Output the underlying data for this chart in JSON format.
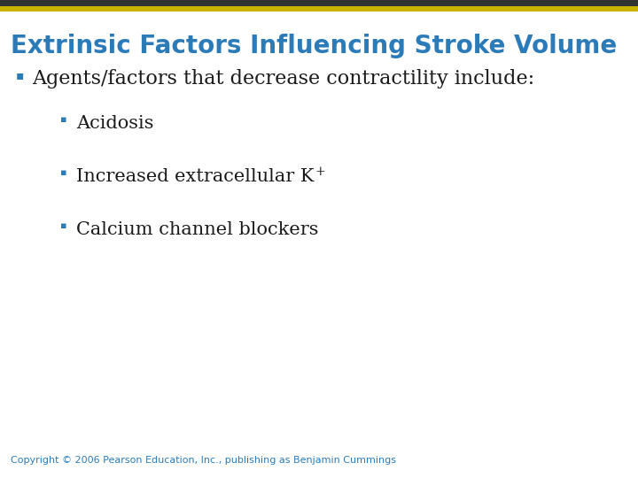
{
  "title": "Extrinsic Factors Influencing Stroke Volume",
  "title_color": "#2b7bb9",
  "title_fontsize": 20,
  "title_bold": true,
  "top_bar_dark_color": "#333333",
  "top_bar_gold_color": "#c8b400",
  "background_color": "#ffffff",
  "bullet1_text": "Agents/factors that decrease contractility include:",
  "bullet1_color": "#1a1a1a",
  "bullet1_fontsize": 16,
  "bullet1_bullet_color": "#2b7bb9",
  "sub_bullets": [
    "Acidosis",
    "Increased extracellular K",
    "Calcium channel blockers"
  ],
  "sub_bullet_superscripts": [
    null,
    "+",
    null
  ],
  "sub_bullet_color": "#1a1a1a",
  "sub_bullet_fontsize": 15,
  "sub_bullet_marker_color": "#2b7bb9",
  "copyright_text": "Copyright © 2006 Pearson Education, Inc., publishing as Benjamin Cummings",
  "copyright_color": "#2b7bb9",
  "copyright_fontsize": 8,
  "fig_width": 7.2,
  "fig_height": 5.4,
  "dpi": 100
}
